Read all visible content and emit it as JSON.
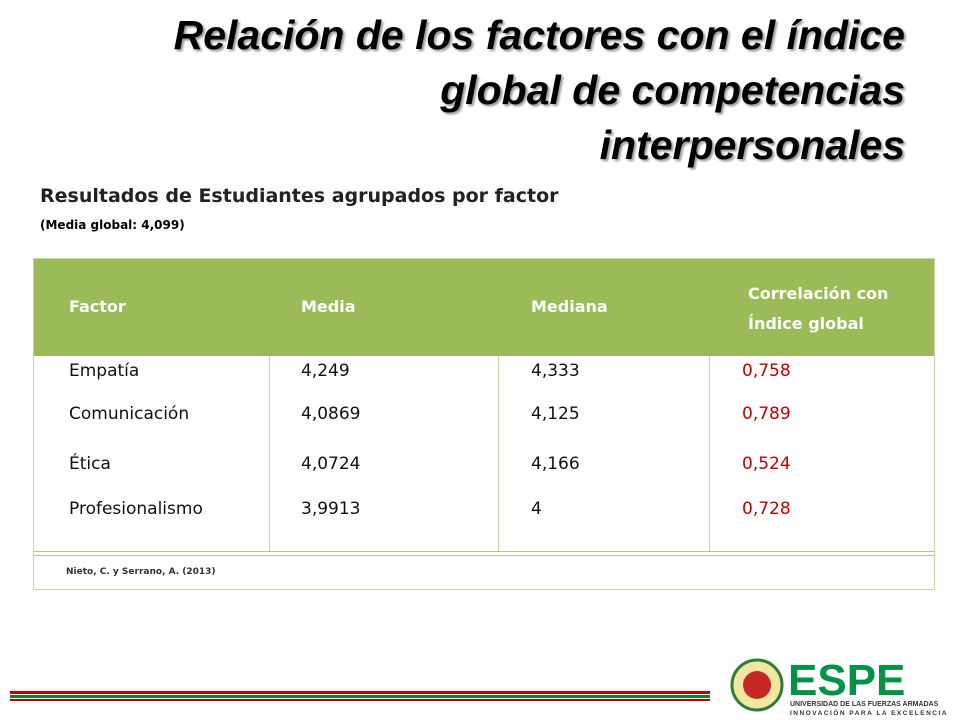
{
  "header": {
    "title_lines": [
      "Relación de los factores con el índice",
      "global de competencias",
      "interpersonales"
    ],
    "subtitle": "Resultados de Estudiantes agrupados por factor",
    "note": "(Media global: 4,099)"
  },
  "table": {
    "columns": [
      "Factor",
      "Media",
      "Mediana",
      "Correlación con Índice global"
    ],
    "rows": [
      [
        "Empatía",
        "4,249",
        "4,333",
        "0,758"
      ],
      [
        "Comunicación",
        "4,0869",
        "4,125",
        "0,789"
      ],
      [
        "Ética",
        "4,0724",
        "4,166",
        "0,524"
      ],
      [
        "Profesionalismo",
        "3,9913",
        "4",
        "0,728"
      ]
    ],
    "source": "Nieto, C. y Serrano, A. (2013)"
  },
  "logo": {
    "name": "ESPE",
    "line1": "UNIVERSIDAD DE LAS FUERZAS ARMADAS",
    "line2": "INNOVACIÓN PARA LA EXCELENCIA"
  }
}
